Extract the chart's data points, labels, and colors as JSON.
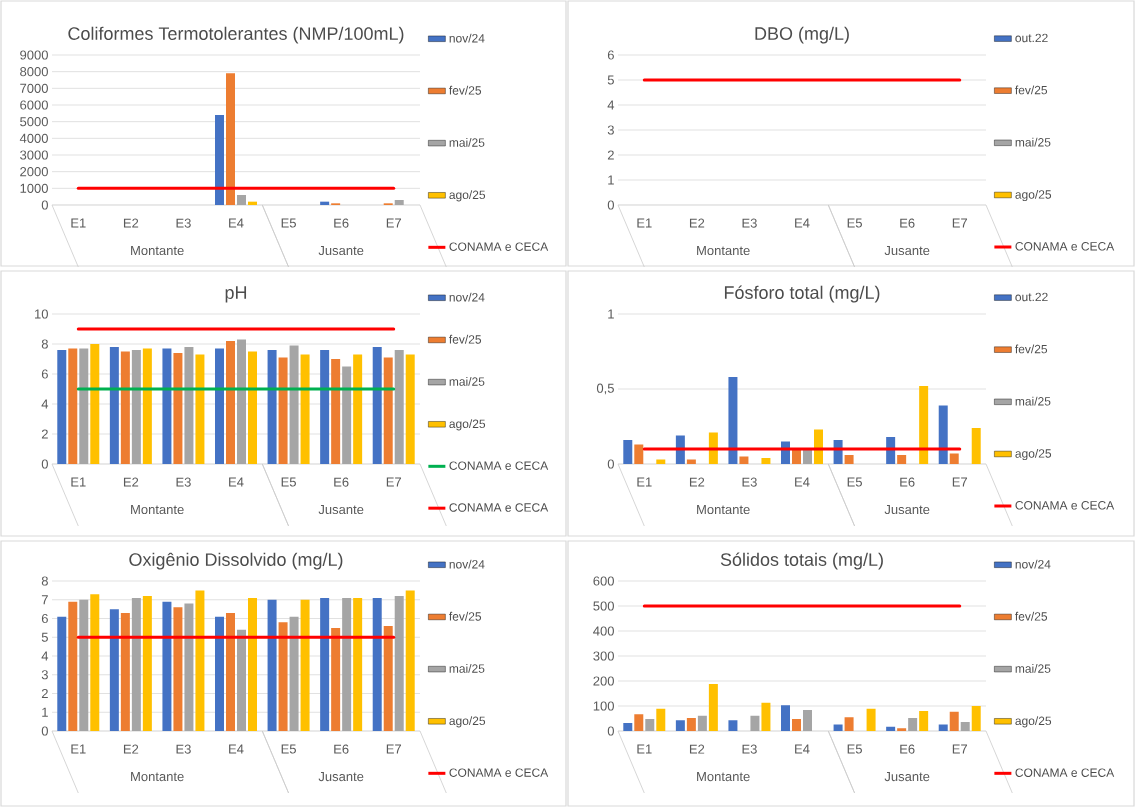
{
  "chart_data": [
    {
      "type": "bar",
      "title": "Coliformes Termotolerantes (NMP/100mL)",
      "categories": [
        "E1",
        "E2",
        "E3",
        "E4",
        "E5",
        "E6",
        "E7"
      ],
      "series": [
        {
          "name": "nov/24",
          "color": "#4472c4",
          "values": [
            0,
            0,
            0,
            5400,
            0,
            200,
            0
          ]
        },
        {
          "name": "fev/25",
          "color": "#ed7d31",
          "values": [
            0,
            0,
            0,
            7900,
            0,
            100,
            100
          ]
        },
        {
          "name": "mai/25",
          "color": "#a5a5a5",
          "values": [
            0,
            0,
            0,
            600,
            0,
            0,
            300
          ]
        },
        {
          "name": "ago/25",
          "color": "#ffc000",
          "values": [
            0,
            0,
            0,
            200,
            0,
            0,
            0
          ]
        },
        {
          "name": "CONAMA e CECA",
          "type": "line",
          "color": "#ff0000",
          "values": [
            1000,
            1000,
            1000,
            1000,
            1000,
            1000,
            1000
          ]
        }
      ],
      "ylim": [
        0,
        9000
      ],
      "yticks": [
        0,
        1000,
        2000,
        3000,
        4000,
        5000,
        6000,
        7000,
        8000,
        9000
      ],
      "grid": "y",
      "legend": "right",
      "annotations": [
        "Montante",
        "Jusante"
      ]
    },
    {
      "type": "bar",
      "title": "DBO (mg/L)",
      "categories": [
        "E1",
        "E2",
        "E3",
        "E4",
        "E5",
        "E6",
        "E7"
      ],
      "series": [
        {
          "name": "out.22",
          "color": "#4472c4",
          "values": [
            null,
            null,
            null,
            null,
            null,
            null,
            null
          ]
        },
        {
          "name": "fev/25",
          "color": "#ed7d31",
          "values": [
            null,
            null,
            null,
            null,
            null,
            null,
            null
          ]
        },
        {
          "name": "mai/25",
          "color": "#a5a5a5",
          "values": [
            null,
            null,
            null,
            null,
            null,
            null,
            null
          ]
        },
        {
          "name": "ago/25",
          "color": "#ffc000",
          "values": [
            null,
            null,
            null,
            null,
            null,
            null,
            null
          ]
        },
        {
          "name": "CONAMA e CECA",
          "type": "line",
          "color": "#ff0000",
          "values": [
            5,
            5,
            5,
            5,
            5,
            5,
            5
          ]
        }
      ],
      "ylim": [
        0,
        6
      ],
      "yticks": [
        0,
        1,
        2,
        3,
        4,
        5,
        6
      ],
      "grid": "y",
      "legend": "right",
      "annotations": [
        "Montante",
        "Jusante"
      ]
    },
    {
      "type": "bar",
      "title": "pH",
      "categories": [
        "E1",
        "E2",
        "E3",
        "E4",
        "E5",
        "E6",
        "E7"
      ],
      "series": [
        {
          "name": "nov/24",
          "color": "#4472c4",
          "values": [
            7.6,
            7.8,
            7.7,
            7.7,
            7.6,
            7.6,
            7.8
          ]
        },
        {
          "name": "fev/25",
          "color": "#ed7d31",
          "values": [
            7.7,
            7.5,
            7.4,
            8.2,
            7.1,
            7.0,
            7.1
          ]
        },
        {
          "name": "mai/25",
          "color": "#a5a5a5",
          "values": [
            7.7,
            7.6,
            7.8,
            8.3,
            7.9,
            6.5,
            7.6
          ]
        },
        {
          "name": "ago/25",
          "color": "#ffc000",
          "values": [
            8.0,
            7.7,
            7.3,
            7.5,
            7.3,
            7.3,
            7.3
          ]
        },
        {
          "name": "CONAMA e CECA",
          "type": "line",
          "color": "#00b050",
          "values": [
            5,
            5,
            5,
            5,
            5,
            5,
            5
          ]
        },
        {
          "name": "CONAMA e CECA",
          "type": "line",
          "color": "#ff0000",
          "values": [
            9,
            9,
            9,
            9,
            9,
            9,
            9
          ]
        }
      ],
      "ylim": [
        0,
        10
      ],
      "yticks": [
        0,
        2,
        4,
        6,
        8,
        10
      ],
      "grid": "y",
      "legend": "right",
      "annotations": [
        "Montante",
        "Jusante"
      ]
    },
    {
      "type": "bar",
      "title": "Fósforo total (mg/L)",
      "categories": [
        "E1",
        "E2",
        "E3",
        "E4",
        "E5",
        "E6",
        "E7"
      ],
      "series": [
        {
          "name": "out.22",
          "color": "#4472c4",
          "values": [
            0.16,
            0.19,
            0.58,
            0.15,
            0.16,
            0.18,
            0.39
          ]
        },
        {
          "name": "fev/25",
          "color": "#ed7d31",
          "values": [
            0.13,
            0.03,
            0.05,
            0.1,
            0.06,
            0.06,
            0.07
          ]
        },
        {
          "name": "mai/25",
          "color": "#a5a5a5",
          "values": [
            null,
            null,
            null,
            0.1,
            null,
            null,
            null
          ]
        },
        {
          "name": "ago/25",
          "color": "#ffc000",
          "values": [
            0.03,
            0.21,
            0.04,
            0.23,
            null,
            0.52,
            0.24
          ]
        },
        {
          "name": "CONAMA e CECA",
          "type": "line",
          "color": "#ff0000",
          "values": [
            0.1,
            0.1,
            0.1,
            0.1,
            0.1,
            0.1,
            0.1
          ]
        }
      ],
      "ylim": [
        0,
        1
      ],
      "yticks": [
        0,
        {
          "value": 0.5,
          "label": "0,5"
        },
        1
      ],
      "grid": "y",
      "legend": "right",
      "annotations": [
        "Montante",
        "Jusante"
      ]
    },
    {
      "type": "bar",
      "title": "Oxigênio Dissolvido (mg/L)",
      "categories": [
        "E1",
        "E2",
        "E3",
        "E4",
        "E5",
        "E6",
        "E7"
      ],
      "series": [
        {
          "name": "nov/24",
          "color": "#4472c4",
          "values": [
            6.1,
            6.5,
            6.9,
            6.1,
            7.0,
            7.1,
            7.1
          ]
        },
        {
          "name": "fev/25",
          "color": "#ed7d31",
          "values": [
            6.9,
            6.3,
            6.6,
            6.3,
            5.8,
            5.5,
            5.6
          ]
        },
        {
          "name": "mai/25",
          "color": "#a5a5a5",
          "values": [
            7.0,
            7.1,
            6.8,
            5.4,
            6.1,
            7.1,
            7.2
          ]
        },
        {
          "name": "ago/25",
          "color": "#ffc000",
          "values": [
            7.3,
            7.2,
            7.5,
            7.1,
            7.0,
            7.1,
            7.5
          ]
        },
        {
          "name": "CONAMA e CECA",
          "type": "line",
          "color": "#ff0000",
          "values": [
            5,
            5,
            5,
            5,
            5,
            5,
            5
          ]
        }
      ],
      "ylim": [
        0,
        8
      ],
      "yticks": [
        0,
        1,
        2,
        3,
        4,
        5,
        6,
        7,
        8
      ],
      "grid": "y",
      "legend": "right",
      "annotations": [
        "Montante",
        "Jusante"
      ]
    },
    {
      "type": "bar",
      "title": "Sólidos totais (mg/L)",
      "categories": [
        "E1",
        "E2",
        "E3",
        "E4",
        "E5",
        "E6",
        "E7"
      ],
      "series": [
        {
          "name": "nov/24",
          "color": "#4472c4",
          "values": [
            32,
            43,
            43,
            103,
            26,
            17,
            26
          ]
        },
        {
          "name": "fev/25",
          "color": "#ed7d31",
          "values": [
            67,
            52,
            null,
            48,
            55,
            11,
            77
          ]
        },
        {
          "name": "mai/25",
          "color": "#a5a5a5",
          "values": [
            48,
            61,
            61,
            84,
            null,
            52,
            36
          ]
        },
        {
          "name": "ago/25",
          "color": "#ffc000",
          "values": [
            89,
            188,
            113,
            null,
            89,
            80,
            100
          ]
        },
        {
          "name": "CONAMA e CECA",
          "type": "line",
          "color": "#ff0000",
          "values": [
            500,
            500,
            500,
            500,
            500,
            500,
            500
          ]
        }
      ],
      "ylim": [
        0,
        600
      ],
      "yticks": [
        0,
        100,
        200,
        300,
        400,
        500,
        600
      ],
      "grid": "y",
      "legend": "right",
      "annotations": [
        "Montante",
        "Jusante"
      ]
    }
  ]
}
